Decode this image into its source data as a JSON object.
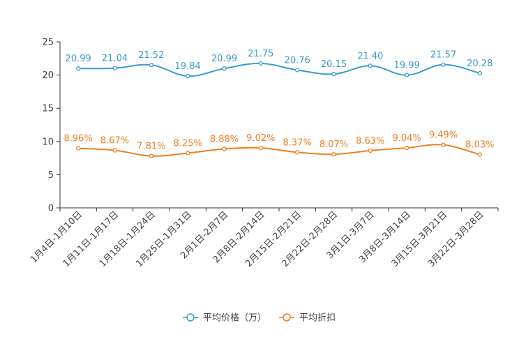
{
  "chart_data": {
    "type": "line",
    "title": "",
    "xlabel": "",
    "ylabel": "",
    "ylim": [
      0,
      25
    ],
    "yticks": [
      0,
      5,
      10,
      15,
      20,
      25
    ],
    "grid": false,
    "legend_position": "bottom-center",
    "categories": [
      "1月4日-1月10日",
      "1月11日-1月17日",
      "1月18日-1月24日",
      "1月25日-1月31日",
      "2月1日-2月7日",
      "2月8日-2月14日",
      "2月15日-2月21日",
      "2月22日-2月28日",
      "3月1日-3月7日",
      "3月8日-3月14日",
      "3月15日-3月21日",
      "3月22日-3月28日"
    ],
    "series": [
      {
        "name": "平均价格（万）",
        "color": "#3a9bd0",
        "values": [
          20.99,
          21.04,
          21.52,
          19.84,
          20.99,
          21.75,
          20.76,
          20.15,
          21.4,
          19.99,
          21.57,
          20.28
        ],
        "labels": [
          "20.99",
          "21.04",
          "21.52",
          "19.84",
          "20.99",
          "21.75",
          "20.76",
          "20.15",
          "21.40",
          "19.99",
          "21.57",
          "20.28"
        ]
      },
      {
        "name": "平均折扣",
        "color": "#f07f20",
        "values": [
          8.96,
          8.67,
          7.81,
          8.25,
          8.88,
          9.02,
          8.37,
          8.07,
          8.63,
          9.04,
          9.49,
          8.03
        ],
        "labels": [
          "8.96%",
          "8.67%",
          "7.81%",
          "8.25%",
          "8.88%",
          "9.02%",
          "8.37%",
          "8.07%",
          "8.63%",
          "9.04%",
          "9.49%",
          "8.03%"
        ]
      }
    ]
  }
}
